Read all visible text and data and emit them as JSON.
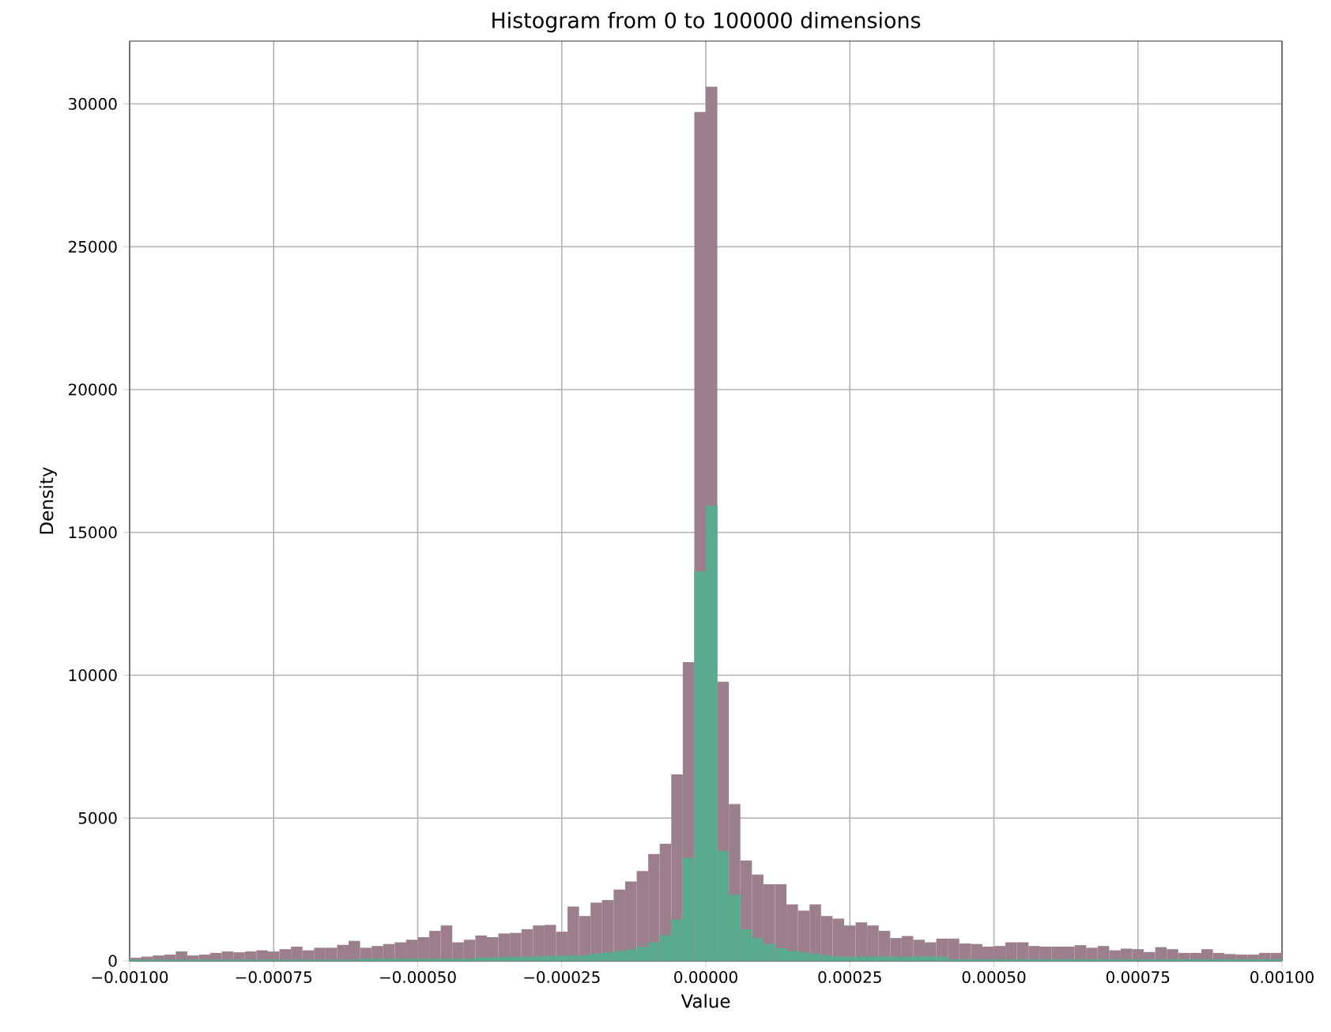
{
  "chart_data": {
    "type": "histogram",
    "title": "Histogram   from 0 to 100000 dimensions",
    "xlabel": "Value",
    "ylabel": "Density",
    "bins": [
      -0.001,
      -0.00098,
      -0.00096,
      -0.00094,
      -0.00092,
      -0.0009,
      -0.00088,
      -0.00086,
      -0.00084,
      -0.00082,
      -0.0008,
      -0.00078,
      -0.00076,
      -0.00074,
      -0.00072,
      -0.0007,
      -0.00068,
      -0.00066,
      -0.00064,
      -0.00062,
      -0.0006,
      -0.00058,
      -0.00056,
      -0.00054,
      -0.00052,
      -0.0005,
      -0.00048,
      -0.00046,
      -0.00044,
      -0.00042,
      -0.0004,
      -0.00038,
      -0.00036,
      -0.00034,
      -0.00032,
      -0.0003,
      -0.00028,
      -0.00026,
      -0.00024,
      -0.00022,
      -0.0002,
      -0.00018,
      -0.00016,
      -0.00014,
      -0.00012,
      -0.0001,
      -8e-05,
      -6e-05,
      -4e-05,
      -2e-05,
      0,
      2e-05,
      4e-05,
      6e-05,
      8e-05,
      0.0001,
      0.00012,
      0.00014,
      0.00016,
      0.00018,
      0.0002,
      0.00022,
      0.00024,
      0.00026,
      0.00028,
      0.0003,
      0.00032,
      0.00034,
      0.00036,
      0.00038,
      0.0004,
      0.00042,
      0.00044,
      0.00046,
      0.00048,
      0.0005,
      0.00052,
      0.00054,
      0.00056,
      0.00058,
      0.0006,
      0.00062,
      0.00064,
      0.00066,
      0.00068,
      0.0007,
      0.00072,
      0.00074,
      0.00076,
      0.00078,
      0.0008,
      0.00082,
      0.00084,
      0.00086,
      0.00088,
      0.0009,
      0.00092,
      0.00094,
      0.00096,
      0.00098,
      0.001
    ],
    "series": [
      {
        "color": "#9c7f8c",
        "values": [
          110,
          150,
          190,
          220,
          330,
          190,
          220,
          280,
          330,
          300,
          330,
          370,
          330,
          410,
          500,
          370,
          460,
          460,
          560,
          700,
          460,
          520,
          590,
          650,
          740,
          830,
          1050,
          1240,
          650,
          740,
          890,
          830,
          960,
          980,
          1110,
          1240,
          1260,
          1020,
          1900,
          1570,
          2040,
          2130,
          2500,
          2780,
          3150,
          3740,
          4100,
          6530,
          10460,
          29720,
          30600,
          9770,
          5490,
          3510,
          3020,
          2680,
          2680,
          1980,
          1760,
          1980,
          1570,
          1480,
          1240,
          1350,
          1240,
          1050,
          800,
          870,
          740,
          650,
          780,
          780,
          610,
          590,
          500,
          520,
          650,
          650,
          520,
          500,
          500,
          500,
          550,
          460,
          520,
          370,
          430,
          410,
          310,
          480,
          410,
          280,
          280,
          410,
          280,
          240,
          220,
          220,
          280,
          280
        ]
      },
      {
        "color": "#5aaa8e",
        "values": [
          50,
          50,
          50,
          50,
          50,
          50,
          50,
          50,
          50,
          50,
          50,
          50,
          50,
          50,
          50,
          50,
          50,
          50,
          50,
          50,
          80,
          80,
          80,
          80,
          80,
          80,
          80,
          80,
          80,
          80,
          120,
          120,
          130,
          140,
          150,
          160,
          170,
          180,
          190,
          200,
          250,
          300,
          350,
          400,
          500,
          650,
          900,
          1450,
          3600,
          13640,
          15940,
          3850,
          2320,
          1100,
          800,
          600,
          450,
          350,
          300,
          250,
          200,
          150,
          150,
          150,
          150,
          150,
          150,
          150,
          150,
          150,
          150,
          60,
          60,
          60,
          60,
          60,
          60,
          60,
          60,
          60,
          60,
          60,
          60,
          60,
          60,
          60,
          60,
          60,
          60,
          60,
          60,
          60,
          60,
          60,
          60,
          60,
          60,
          60,
          60,
          60
        ]
      }
    ],
    "xlim": [
      -0.001,
      0.001
    ],
    "ylim": [
      0,
      32200
    ],
    "xticks": [
      {
        "value": -0.001,
        "label": "−0.00100"
      },
      {
        "value": -0.00075,
        "label": "−0.00075"
      },
      {
        "value": -0.0005,
        "label": "−0.00050"
      },
      {
        "value": -0.00025,
        "label": "−0.00025"
      },
      {
        "value": 0,
        "label": "0.00000"
      },
      {
        "value": 0.00025,
        "label": "0.00025"
      },
      {
        "value": 0.0005,
        "label": "0.00050"
      },
      {
        "value": 0.00075,
        "label": "0.00075"
      },
      {
        "value": 0.001,
        "label": "0.00100"
      }
    ],
    "yticks": [
      0,
      5000,
      10000,
      15000,
      20000,
      25000,
      30000
    ],
    "grid": true
  }
}
